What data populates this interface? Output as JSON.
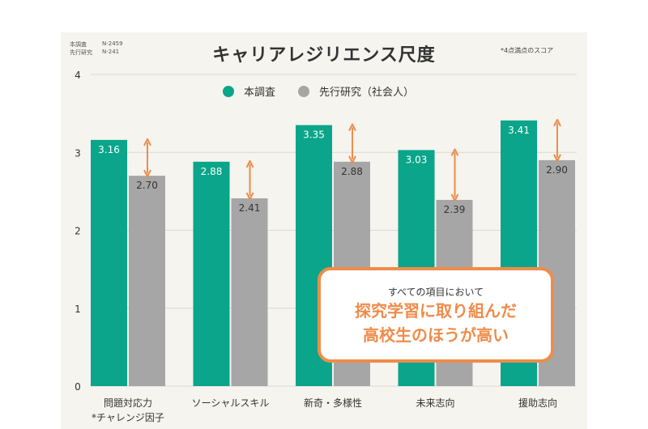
{
  "meta": {
    "rows": [
      {
        "label": "本調査",
        "value": "N-2459"
      },
      {
        "label": "先行研究",
        "value": "N-241"
      }
    ]
  },
  "note": "*4点満点のスコア",
  "colors": {
    "series1": "#0aa58a",
    "series2": "#a6a6a6",
    "arrow": "#ef8c4a",
    "panel": "#f5f4ef"
  },
  "callout": {
    "lead": "すべての項目において",
    "line1": "探究学習に取り組んだ",
    "line2": "高校生のほうが高い"
  },
  "chart_data": {
    "type": "bar",
    "title": "キャリアレジリエンス尺度",
    "categories": [
      "問題対応力\n*チャレンジ因子",
      "ソーシャルスキル",
      "新奇・多様性",
      "未来志向",
      "援助志向"
    ],
    "series": [
      {
        "name": "本調査",
        "values": [
          3.16,
          2.88,
          3.35,
          3.03,
          3.41
        ],
        "labels": [
          "3.16",
          "2.88",
          "3.35",
          "3.03",
          "3.41"
        ]
      },
      {
        "name": "先行研究（社会人）",
        "values": [
          2.7,
          2.41,
          2.88,
          2.39,
          2.9
        ],
        "labels": [
          "2.70",
          "2.41",
          "2.88",
          "2.39",
          "2.90"
        ]
      }
    ],
    "yticks": [
      0,
      1,
      2,
      3,
      4
    ],
    "ylim": [
      0,
      4
    ],
    "grid": true,
    "legend": "top-center"
  }
}
